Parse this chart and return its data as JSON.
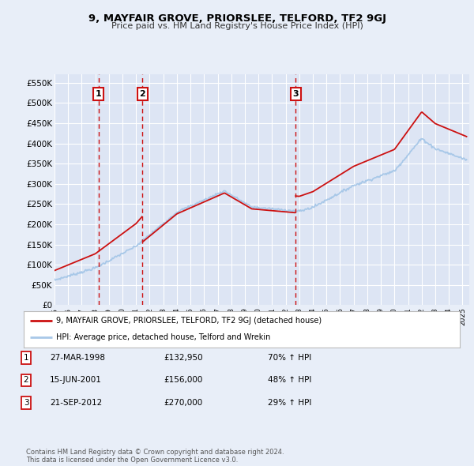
{
  "title": "9, MAYFAIR GROVE, PRIORSLEE, TELFORD, TF2 9GJ",
  "subtitle": "Price paid vs. HM Land Registry's House Price Index (HPI)",
  "bg_color": "#e8eef8",
  "plot_bg_color": "#dde5f4",
  "grid_color": "#ffffff",
  "hpi_color": "#a8c8e8",
  "price_color": "#cc1111",
  "ylim": [
    0,
    570000
  ],
  "yticks": [
    0,
    50000,
    100000,
    150000,
    200000,
    250000,
    300000,
    350000,
    400000,
    450000,
    500000,
    550000
  ],
  "ytick_labels": [
    "£0",
    "£50K",
    "£100K",
    "£150K",
    "£200K",
    "£250K",
    "£300K",
    "£350K",
    "£400K",
    "£450K",
    "£500K",
    "£550K"
  ],
  "transactions": [
    {
      "date_num": 1998.23,
      "price": 132950,
      "label": "1"
    },
    {
      "date_num": 2001.46,
      "price": 156000,
      "label": "2"
    },
    {
      "date_num": 2012.73,
      "price": 270000,
      "label": "3"
    }
  ],
  "vline_color": "#cc1111",
  "legend_entries": [
    "9, MAYFAIR GROVE, PRIORSLEE, TELFORD, TF2 9GJ (detached house)",
    "HPI: Average price, detached house, Telford and Wrekin"
  ],
  "table_rows": [
    {
      "num": "1",
      "date": "27-MAR-1998",
      "price": "£132,950",
      "change": "70% ↑ HPI"
    },
    {
      "num": "2",
      "date": "15-JUN-2001",
      "price": "£156,000",
      "change": "48% ↑ HPI"
    },
    {
      "num": "3",
      "date": "21-SEP-2012",
      "price": "£270,000",
      "change": "29% ↑ HPI"
    }
  ],
  "footer": "Contains HM Land Registry data © Crown copyright and database right 2024.\nThis data is licensed under the Open Government Licence v3.0.",
  "xmin": 1995.0,
  "xmax": 2025.5
}
